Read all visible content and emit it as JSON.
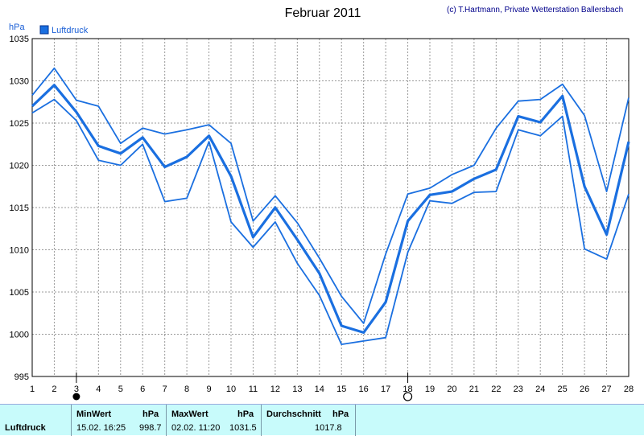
{
  "header": {
    "title": "Februar 2011",
    "copyright": "(c) T.Hartmann, Private Wetterstation Ballersbach",
    "unit": "hPa"
  },
  "legend": {
    "label": "Luftdruck",
    "color": "#1a6fe0"
  },
  "chart_data": {
    "type": "line",
    "title": "Februar 2011",
    "ylabel": "hPa",
    "xlabel": "",
    "ylim": [
      995,
      1035
    ],
    "xlim": [
      1,
      28
    ],
    "yticks": [
      995,
      1000,
      1005,
      1010,
      1015,
      1020,
      1025,
      1030,
      1035
    ],
    "x": [
      1,
      2,
      3,
      4,
      5,
      6,
      7,
      8,
      9,
      10,
      11,
      12,
      13,
      14,
      15,
      16,
      17,
      18,
      19,
      20,
      21,
      22,
      23,
      24,
      25,
      26,
      27,
      28
    ],
    "grid": true,
    "legend_position": "top-left",
    "series": [
      {
        "name": "Luftdruck",
        "values": [
          1027.0,
          1029.5,
          1026.3,
          1022.3,
          1021.4,
          1023.3,
          1019.8,
          1021.0,
          1023.5,
          1018.7,
          1011.5,
          1015.0,
          1011.2,
          1007.2,
          1001.0,
          1000.2,
          1003.8,
          1013.4,
          1016.5,
          1016.9,
          1018.4,
          1019.5,
          1025.8,
          1025.1,
          1028.2,
          1017.5,
          1011.8,
          1022.8
        ]
      },
      {
        "role": "max",
        "values": [
          1028.3,
          1031.5,
          1027.7,
          1027.0,
          1022.6,
          1024.4,
          1023.7,
          1024.2,
          1024.8,
          1022.6,
          1013.4,
          1016.4,
          1013.2,
          1009.0,
          1004.5,
          1001.3,
          1009.5,
          1016.6,
          1017.3,
          1018.9,
          1020.0,
          1024.4,
          1027.6,
          1027.8,
          1029.6,
          1025.9,
          1016.9,
          1028.0
        ]
      },
      {
        "role": "min",
        "values": [
          1026.2,
          1027.8,
          1025.3,
          1020.6,
          1020.0,
          1022.5,
          1015.7,
          1016.1,
          1022.8,
          1013.3,
          1010.3,
          1013.3,
          1008.4,
          1004.6,
          998.8,
          999.2,
          999.6,
          1009.7,
          1015.8,
          1015.5,
          1016.8,
          1016.9,
          1024.2,
          1023.5,
          1025.8,
          1010.1,
          1008.9,
          1016.6
        ]
      }
    ],
    "markers": [
      {
        "x": 3,
        "symbol": "filled-circle",
        "meaning": "new moon"
      },
      {
        "x": 18,
        "symbol": "open-circle",
        "meaning": "full moon"
      }
    ]
  },
  "stats": {
    "row_label": "Luftdruck",
    "min": {
      "header": "MinWert",
      "unit": "hPa",
      "time": "15.02.  16:25",
      "value": "998.7"
    },
    "max": {
      "header": "MaxWert",
      "unit": "hPa",
      "time": "02.02.  11:20",
      "value": "1031.5"
    },
    "avg": {
      "header": "Durchschnitt",
      "unit": "hPa",
      "value": "1017.8"
    }
  }
}
